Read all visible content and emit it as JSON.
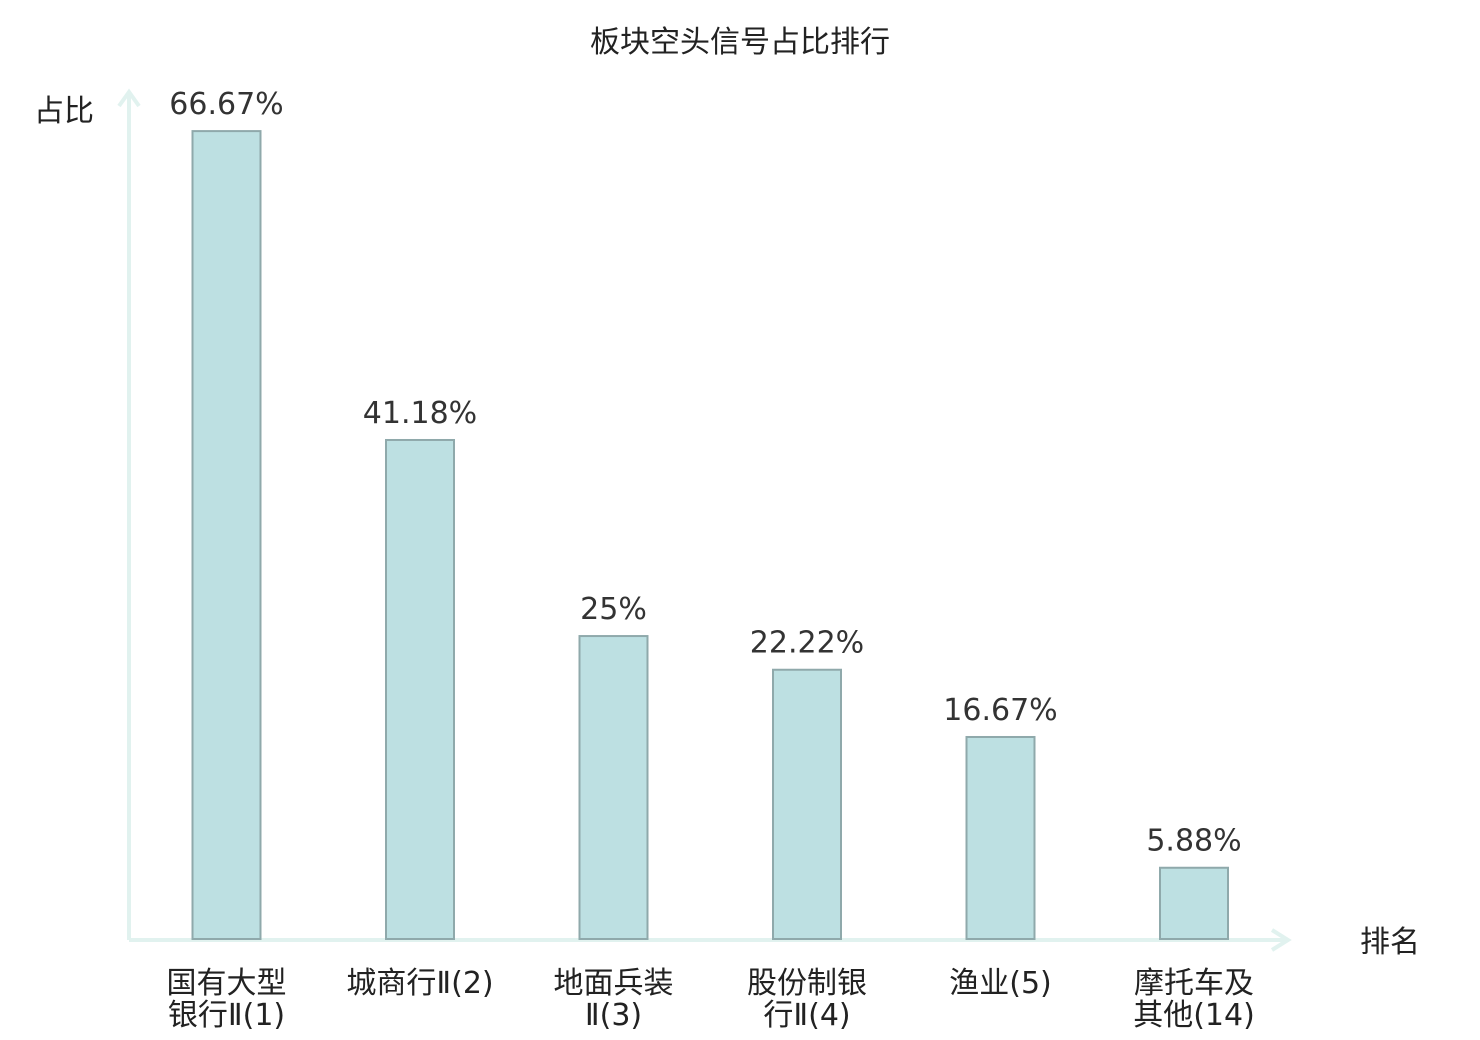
{
  "chart_data": {
    "type": "bar",
    "title": "板块空头信号占比排行",
    "ylabel": "占比",
    "xlabel": "排名",
    "ylim": [
      0,
      70
    ],
    "grid": false,
    "bar_color": "#bde0e2",
    "bar_edge_color": "#8fa9ab",
    "axis_color": "#e1f2ef",
    "highlight_color": "#e00000",
    "categories": [
      {
        "lines": [
          "国有大型",
          "银行Ⅱ(1)"
        ],
        "highlight": false
      },
      {
        "lines": [
          "城商行Ⅱ(2)"
        ],
        "highlight": false
      },
      {
        "lines": [
          "地面兵装",
          "Ⅱ(3)"
        ],
        "highlight": false
      },
      {
        "lines": [
          "股份制银",
          "行Ⅱ(4)"
        ],
        "highlight": false
      },
      {
        "lines": [
          "渔业(5)"
        ],
        "highlight": false
      },
      {
        "lines": [
          "摩托车及",
          "其他(14)"
        ],
        "highlight": true
      }
    ],
    "values": [
      66.67,
      41.18,
      25,
      22.22,
      16.67,
      5.88
    ],
    "value_labels": [
      "66.67%",
      "41.18%",
      "25%",
      "22.22%",
      "16.67%",
      "5.88%"
    ]
  }
}
